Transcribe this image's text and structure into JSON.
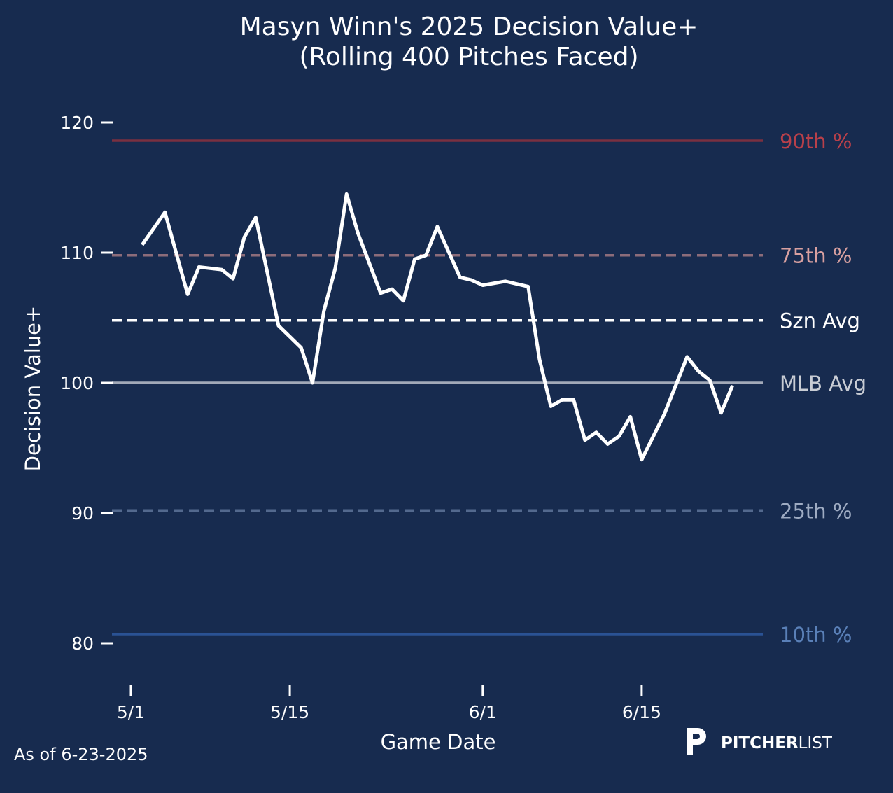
{
  "chart_data": {
    "type": "line",
    "title": "Masyn Winn's 2025 Decision Value+",
    "subtitle": "(Rolling 400 Pitches Faced)",
    "xlabel": "Game Date",
    "ylabel": "Decision Value+",
    "ylim": [
      77,
      122
    ],
    "yticks": [
      80,
      90,
      100,
      110,
      120
    ],
    "xticks": [
      {
        "label": "5/1",
        "day": 0
      },
      {
        "label": "5/15",
        "day": 14
      },
      {
        "label": "6/1",
        "day": 31
      },
      {
        "label": "6/15",
        "day": 45
      }
    ],
    "xlim_days_from_5_1": [
      -1.7,
      55.7
    ],
    "grid": false,
    "series": [
      {
        "name": "Decision Value+",
        "color": "#ffffff",
        "x": [
          "5/2",
          "5/4",
          "5/6",
          "5/7",
          "5/9",
          "5/10",
          "5/11",
          "5/12",
          "5/14",
          "5/16",
          "5/17",
          "5/18",
          "5/19",
          "5/20",
          "5/21",
          "5/23",
          "5/24",
          "5/25",
          "5/26",
          "5/27",
          "5/28",
          "5/30",
          "5/31",
          "6/1",
          "6/3",
          "6/5",
          "6/6",
          "6/7",
          "6/8",
          "6/9",
          "6/10",
          "6/11",
          "6/12",
          "6/13",
          "6/14",
          "6/15",
          "6/17",
          "6/19",
          "6/20",
          "6/21",
          "6/22",
          "6/23"
        ],
        "days": [
          1,
          3,
          5,
          6,
          8,
          9,
          10,
          11,
          13,
          15,
          16,
          17,
          18,
          19,
          20,
          22,
          23,
          24,
          25,
          26,
          27,
          29,
          30,
          31,
          33,
          35,
          36,
          37,
          38,
          39,
          40,
          41,
          42,
          43,
          44,
          45,
          47,
          49,
          50,
          51,
          52,
          53
        ],
        "values": [
          110.6,
          113.1,
          106.8,
          108.9,
          108.7,
          108.0,
          111.2,
          112.7,
          104.4,
          102.7,
          100.0,
          105.5,
          108.8,
          114.5,
          111.5,
          106.9,
          107.2,
          106.3,
          109.5,
          109.8,
          112.0,
          108.1,
          107.9,
          107.5,
          107.8,
          107.4,
          101.8,
          98.2,
          98.7,
          98.7,
          95.6,
          96.2,
          95.3,
          95.9,
          97.4,
          94.1,
          97.6,
          102.0,
          100.9,
          100.2,
          97.7,
          99.8
        ]
      }
    ],
    "reference_lines": [
      {
        "label": "90th %",
        "value": 118.6,
        "style": "solid",
        "line_color": "#7a3040",
        "text_color": "#b8404a"
      },
      {
        "label": "75th %",
        "value": 109.8,
        "style": "dashed",
        "line_color": "#8c6c7a",
        "text_color": "#d8a0a0"
      },
      {
        "label": "Szn Avg",
        "value": 104.8,
        "style": "dashed",
        "line_color": "#ffffff",
        "text_color": "#ffffff"
      },
      {
        "label": "MLB Avg",
        "value": 100.0,
        "style": "solid",
        "line_color": "#a2a9b8",
        "text_color": "#c8ccd4"
      },
      {
        "label": "25th %",
        "value": 90.2,
        "style": "dashed",
        "line_color": "#53698e",
        "text_color": "#9eabc2"
      },
      {
        "label": "10th %",
        "value": 80.7,
        "style": "solid",
        "line_color": "#2a5294",
        "text_color": "#5a80b8"
      }
    ]
  },
  "footer": {
    "as_of": "As of 6-23-2025",
    "logo_bold": "PITCHER",
    "logo_light": "LIST"
  },
  "colors": {
    "background": "#172b4f"
  }
}
